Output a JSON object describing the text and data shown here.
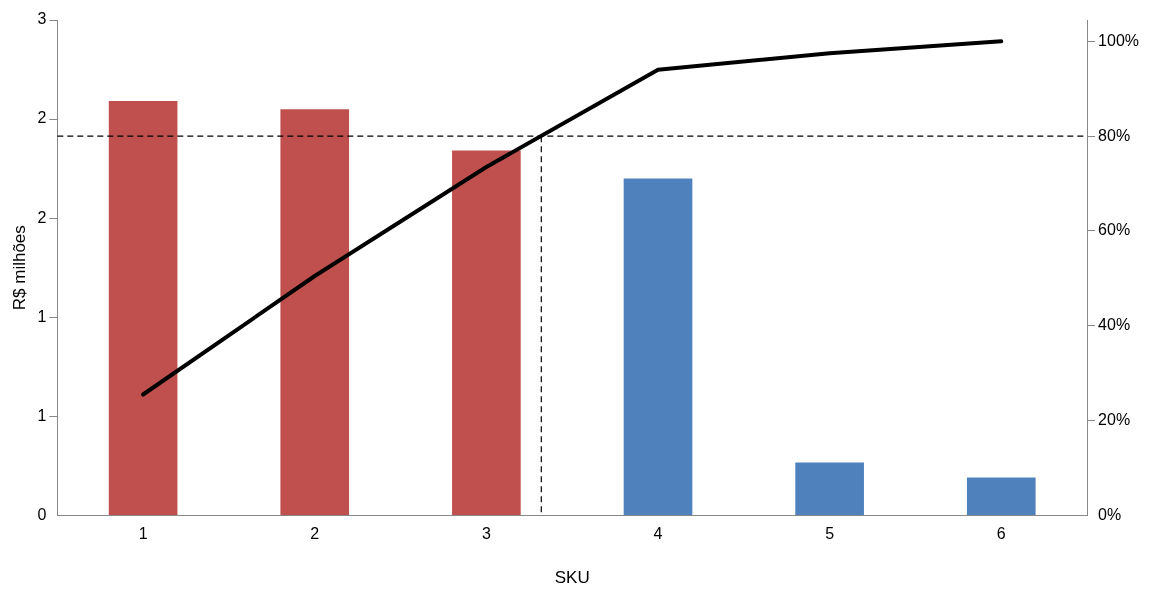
{
  "chart_data": {
    "type": "bar",
    "xlabel": "SKU",
    "ylabel": "R$ milhões",
    "x": [
      1,
      2,
      3,
      4,
      5,
      6
    ],
    "xlim": [
      0.5,
      6.5
    ],
    "xticks": [
      1,
      2,
      3,
      4,
      5,
      6
    ],
    "series": [
      {
        "colors": [
          "#c0504d",
          "#c0504d",
          "#c0504d",
          "#4f81bd",
          "#4f81bd",
          "#4f81bd"
        ],
        "values": [
          2.51,
          2.46,
          2.21,
          2.04,
          0.32,
          0.23
        ]
      },
      {
        "type": "line",
        "axis": "y2",
        "color": "#000000",
        "values": [
          25.5,
          50.5,
          73.5,
          94,
          97.5,
          100
        ]
      }
    ],
    "ylim": [
      0,
      3
    ],
    "yticks": [
      {
        "value": 0,
        "label": "0"
      },
      {
        "value": 0.6,
        "label": "1"
      },
      {
        "value": 1.2,
        "label": "1"
      },
      {
        "value": 1.8,
        "label": "2"
      },
      {
        "value": 2.4,
        "label": "2"
      },
      {
        "value": 3,
        "label": "3"
      }
    ],
    "y2lim": [
      0,
      104.5
    ],
    "y2ticks": [
      {
        "value": 0,
        "label": "0%"
      },
      {
        "value": 20,
        "label": "20%"
      },
      {
        "value": 40,
        "label": "40%"
      },
      {
        "value": 60,
        "label": "60%"
      },
      {
        "value": 80,
        "label": "80%"
      },
      {
        "value": 100,
        "label": "100%"
      }
    ],
    "ref_lines": [
      {
        "axis": "y2",
        "value": 80,
        "color": "#000000",
        "line_style": "dashed"
      },
      {
        "axis": "x",
        "value": 3.32,
        "color": "#000000",
        "line_style": "dashed"
      }
    ],
    "grid": false,
    "legend": false,
    "marker": "none"
  }
}
